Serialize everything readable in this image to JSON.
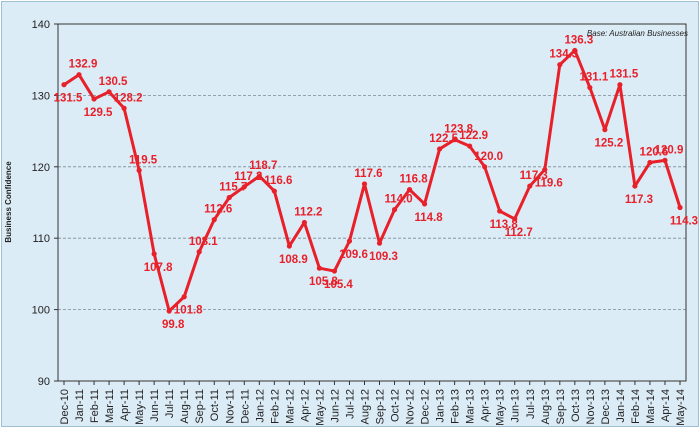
{
  "chart_data": {
    "type": "line",
    "note": "Base: Australian Businesses",
    "ylabel": "Business Confidence",
    "xlabel": "",
    "ylim": [
      90,
      140
    ],
    "yticks": [
      90,
      100,
      110,
      120,
      130,
      140
    ],
    "grid": "horizontal dashed",
    "line_color": "#e8202a",
    "categories": [
      "Dec-10",
      "Jan-11",
      "Feb-11",
      "Mar-11",
      "Apr-11",
      "May-11",
      "Jun-11",
      "Jul-11",
      "Aug-11",
      "Sep-11",
      "Oct-11",
      "Nov-11",
      "Dec-11",
      "Jan-12",
      "Feb-12",
      "Mar-12",
      "Apr-12",
      "May-12",
      "Jun-12",
      "Jul-12",
      "Aug-12",
      "Sep-12",
      "Oct-12",
      "Nov-12",
      "Dec-12",
      "Jan-13",
      "Feb-13",
      "Mar-13",
      "Apr-13",
      "May-13",
      "Jun-13",
      "Jul-13",
      "Aug-13",
      "Sep-13",
      "Oct-13",
      "Nov-13",
      "Dec-13",
      "Jan-14",
      "Feb-14",
      "Mar-14",
      "Apr-14",
      "May-14"
    ],
    "series": [
      {
        "values": [
          131.5,
          132.9,
          129.5,
          130.5,
          128.2,
          119.5,
          107.8,
          99.8,
          101.8,
          108.1,
          112.6,
          115.7,
          117.2,
          118.7,
          116.6,
          108.9,
          112.2,
          105.8,
          105.4,
          109.6,
          117.6,
          109.3,
          114.0,
          116.8,
          114.8,
          122.5,
          123.8,
          122.9,
          120.0,
          113.8,
          112.7,
          117.3,
          119.6,
          134.3,
          136.3,
          131.1,
          125.2,
          131.5,
          117.3,
          120.6,
          120.9,
          114.3
        ],
        "labels": [
          "131.5",
          "132.9",
          "129.5",
          "130.5",
          "128.2",
          "119.5",
          "107.8",
          "99.8",
          "101.8",
          "108.1",
          "112.6",
          "115.7",
          "117.2",
          "118.7",
          "116.6",
          "108.9",
          "112.2",
          "105.8",
          "105.4",
          "109.6",
          "117.6",
          "109.3",
          "114.0",
          "116.8",
          "114.8",
          "122.5",
          "123.8",
          "122.9",
          "120.0",
          "113.8",
          "112.7",
          "117.3",
          "119.6",
          "134.3",
          "136.3",
          "131.1",
          "125.2",
          "131.5",
          "117.3",
          "120.6",
          "120.9",
          "114.3"
        ]
      }
    ]
  }
}
